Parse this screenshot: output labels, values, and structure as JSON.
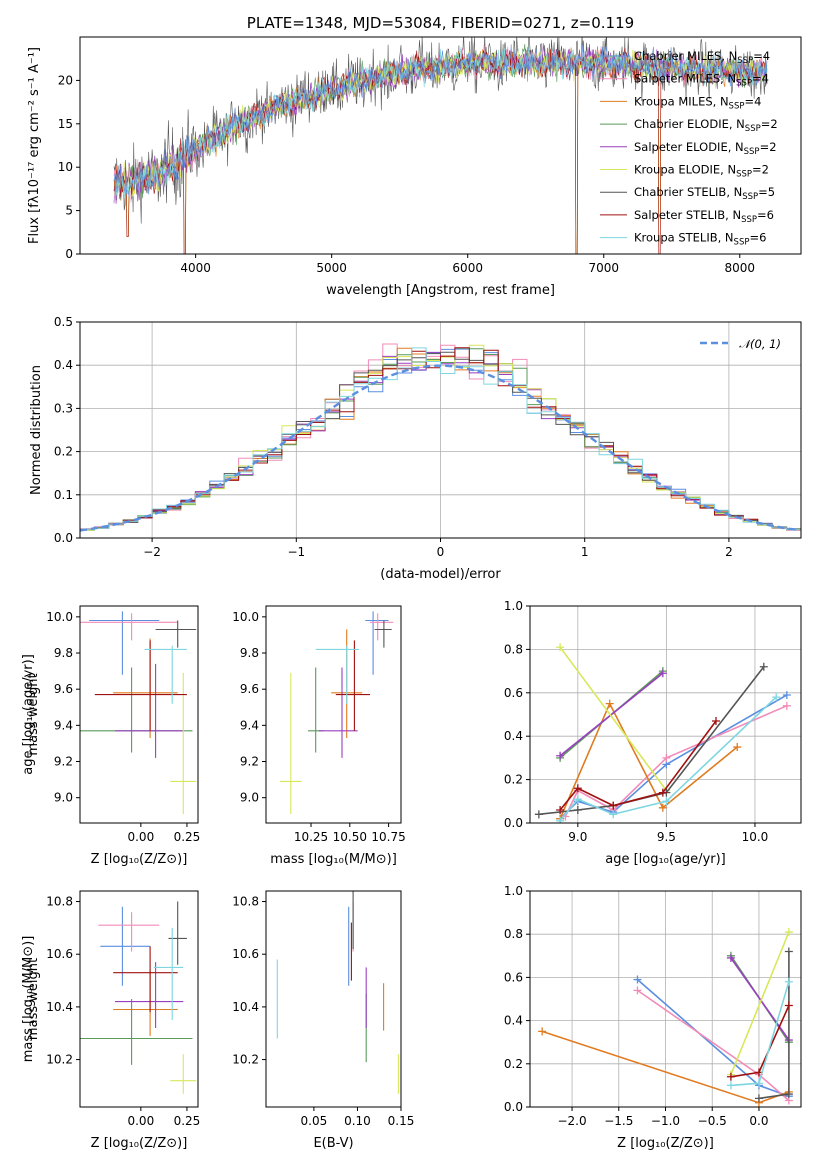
{
  "colors": [
    "#5b8fe0",
    "#f28bb7",
    "#e07b20",
    "#5a9a5a",
    "#9a3fc0",
    "#d8e85a",
    "#555555",
    "#a01010",
    "#7fd6e0"
  ],
  "legend_entries": [
    {
      "base": "Chabrier MILES, N",
      "sub": "SSP",
      "rest": "=4"
    },
    {
      "base": "Salpeter MILES, N",
      "sub": "SSP",
      "rest": "=4"
    },
    {
      "base": "Kroupa MILES, N",
      "sub": "SSP",
      "rest": "=4"
    },
    {
      "base": "Chabrier ELODIE, N",
      "sub": "SSP",
      "rest": "=2"
    },
    {
      "base": "Salpeter ELODIE, N",
      "sub": "SSP",
      "rest": "=2"
    },
    {
      "base": "Kroupa ELODIE, N",
      "sub": "SSP",
      "rest": "=2"
    },
    {
      "base": "Chabrier STELIB, N",
      "sub": "SSP",
      "rest": "=5"
    },
    {
      "base": "Salpeter STELIB, N",
      "sub": "SSP",
      "rest": "=6"
    },
    {
      "base": "Kroupa STELIB, N",
      "sub": "SSP",
      "rest": "=6"
    }
  ],
  "chart_data": [
    {
      "type": "line",
      "title": "PLATE=1348, MJD=53084, FIBERID=0271, z=0.119",
      "xlabel": "wavelength [Angstrom, rest frame]",
      "ylabel": "Flux [fλ10⁻¹⁷ erg cm⁻² s⁻¹ A⁻¹]",
      "xlim": [
        3150,
        8450
      ],
      "ylim": [
        0,
        25
      ],
      "xticks": [
        4000,
        5000,
        6000,
        7000,
        8000
      ],
      "yticks": [
        0,
        5,
        10,
        15,
        20
      ],
      "grid": false,
      "legend": "top-right",
      "x_range": [
        3400,
        8200
      ],
      "continuum_points": [
        [
          3400,
          8
        ],
        [
          3700,
          9
        ],
        [
          3900,
          11
        ],
        [
          4000,
          12
        ],
        [
          4300,
          15
        ],
        [
          4600,
          17
        ],
        [
          5000,
          19
        ],
        [
          5500,
          21
        ],
        [
          6000,
          22
        ],
        [
          6500,
          22
        ],
        [
          7000,
          22
        ],
        [
          7500,
          21.5
        ],
        [
          8000,
          21
        ],
        [
          8200,
          21
        ]
      ],
      "sharp_dips": [
        [
          3500,
          2
        ],
        [
          3920,
          0
        ],
        [
          6800,
          0
        ],
        [
          7410,
          0
        ]
      ]
    },
    {
      "type": "histogram",
      "xlabel": "(data-model)/error",
      "ylabel": "Normed distribution",
      "xlim": [
        -2.5,
        2.5
      ],
      "ylim": [
        0,
        0.5
      ],
      "xticks": [
        -2,
        -1,
        0,
        1,
        2
      ],
      "yticks": [
        0.0,
        0.1,
        0.2,
        0.3,
        0.4,
        0.5
      ],
      "grid": true,
      "legend": "top-right",
      "reference_curve": "𝒩(0, 1)",
      "bin_width": 0.1
    },
    {
      "type": "scatter",
      "xlabel": "Z [log₁₀(Z/Z⊙)]",
      "ylabel": "age  [log₁₀(age/yr)]",
      "xlim": [
        -0.33,
        0.31
      ],
      "ylim": [
        8.86,
        10.06
      ],
      "xticks": [
        0.0,
        0.25
      ],
      "yticks": [
        9.0,
        9.2,
        9.4,
        9.6,
        9.8,
        10.0
      ],
      "points": [
        {
          "x": -0.1,
          "y": 9.98,
          "xerr": [
            0.18,
            0.2
          ],
          "yerr": [
            0.3,
            0.05
          ]
        },
        {
          "x": -0.05,
          "y": 9.97,
          "xerr": [
            0.3,
            0.25
          ],
          "yerr": [
            0.1,
            0.05
          ]
        },
        {
          "x": 0.05,
          "y": 9.58,
          "xerr": [
            0.2,
            0.15
          ],
          "yerr": [
            0.25,
            0.3
          ]
        },
        {
          "x": -0.05,
          "y": 9.37,
          "xerr": [
            0.3,
            0.33
          ],
          "yerr": [
            0.12,
            0.35
          ]
        },
        {
          "x": 0.08,
          "y": 9.37,
          "xerr": [
            0.22,
            0.15
          ],
          "yerr": [
            0.15,
            0.37
          ]
        },
        {
          "x": 0.23,
          "y": 9.09,
          "xerr": [
            0.07,
            0.07
          ],
          "yerr": [
            0.18,
            0.6
          ]
        },
        {
          "x": 0.2,
          "y": 9.93,
          "xerr": [
            0.12,
            0.1
          ],
          "yerr": [
            0.1,
            0.05
          ]
        },
        {
          "x": 0.05,
          "y": 9.57,
          "xerr": [
            0.3,
            0.2
          ],
          "yerr": [
            0.2,
            0.3
          ]
        },
        {
          "x": 0.17,
          "y": 9.82,
          "xerr": [
            0.15,
            0.08
          ],
          "yerr": [
            0.3,
            0.02
          ]
        }
      ]
    },
    {
      "type": "scatter",
      "xlabel": "mass [log₁₀(M/M⊙)]",
      "ylabel": "",
      "xlim": [
        9.96,
        10.83
      ],
      "ylim": [
        8.86,
        10.06
      ],
      "xticks": [
        10.25,
        10.5,
        10.75
      ],
      "yticks": [
        9.0,
        9.2,
        9.4,
        9.6,
        9.8,
        10.0
      ],
      "points": [
        {
          "x": 10.65,
          "y": 9.98,
          "xerr": [
            0.05,
            0.1
          ],
          "yerr": [
            0.3,
            0.05
          ]
        },
        {
          "x": 10.68,
          "y": 9.97,
          "xerr": [
            0.05,
            0.1
          ],
          "yerr": [
            0.1,
            0.05
          ]
        },
        {
          "x": 10.48,
          "y": 9.58,
          "xerr": [
            0.1,
            0.1
          ],
          "yerr": [
            0.25,
            0.35
          ]
        },
        {
          "x": 10.28,
          "y": 9.37,
          "xerr": [
            0.05,
            0.05
          ],
          "yerr": [
            0.12,
            0.35
          ]
        },
        {
          "x": 10.45,
          "y": 9.37,
          "xerr": [
            0.15,
            0.1
          ],
          "yerr": [
            0.15,
            0.35
          ]
        },
        {
          "x": 10.12,
          "y": 9.09,
          "xerr": [
            0.07,
            0.07
          ],
          "yerr": [
            0.18,
            0.6
          ]
        },
        {
          "x": 10.72,
          "y": 9.93,
          "xerr": [
            0.06,
            0.05
          ],
          "yerr": [
            0.1,
            0.05
          ]
        },
        {
          "x": 10.53,
          "y": 9.57,
          "xerr": [
            0.12,
            0.1
          ],
          "yerr": [
            0.2,
            0.3
          ]
        },
        {
          "x": 10.48,
          "y": 9.82,
          "xerr": [
            0.2,
            0.08
          ],
          "yerr": [
            0.3,
            0.02
          ]
        }
      ]
    },
    {
      "type": "line",
      "xlabel": "age  [log₁₀(age/yr)]",
      "ylabel": "mass weight",
      "xlim": [
        8.73,
        10.26
      ],
      "ylim": [
        0,
        1
      ],
      "xticks": [
        9.0,
        9.5,
        10.0
      ],
      "yticks": [
        0.0,
        0.2,
        0.4,
        0.6,
        0.8,
        1.0
      ],
      "grid": true,
      "series": [
        {
          "points": [
            [
              8.9,
              0.02
            ],
            [
              9.0,
              0.1
            ],
            [
              9.2,
              0.05
            ],
            [
              9.5,
              0.27
            ],
            [
              10.18,
              0.59
            ]
          ]
        },
        {
          "points": [
            [
              8.93,
              0.03
            ],
            [
              9.0,
              0.15
            ],
            [
              9.2,
              0.06
            ],
            [
              9.5,
              0.3
            ],
            [
              10.18,
              0.54
            ]
          ]
        },
        {
          "points": [
            [
              8.9,
              0.02
            ],
            [
              9.18,
              0.55
            ],
            [
              9.48,
              0.07
            ],
            [
              9.9,
              0.35
            ]
          ]
        },
        {
          "points": [
            [
              8.9,
              0.3
            ],
            [
              9.48,
              0.7
            ]
          ]
        },
        {
          "points": [
            [
              8.9,
              0.31
            ],
            [
              9.48,
              0.69
            ]
          ]
        },
        {
          "points": [
            [
              8.9,
              0.81
            ],
            [
              9.5,
              0.15
            ]
          ]
        },
        {
          "points": [
            [
              8.78,
              0.04
            ],
            [
              9.0,
              0.06
            ],
            [
              9.2,
              0.08
            ],
            [
              9.5,
              0.14
            ],
            [
              10.05,
              0.72
            ]
          ]
        },
        {
          "points": [
            [
              8.9,
              0.06
            ],
            [
              9.0,
              0.16
            ],
            [
              9.2,
              0.08
            ],
            [
              9.48,
              0.14
            ],
            [
              9.78,
              0.47
            ]
          ]
        },
        {
          "points": [
            [
              8.9,
              0.01
            ],
            [
              9.0,
              0.11
            ],
            [
              9.2,
              0.04
            ],
            [
              9.5,
              0.1
            ],
            [
              10.12,
              0.58
            ]
          ]
        }
      ]
    },
    {
      "type": "scatter",
      "xlabel": "Z [log₁₀(Z/Z⊙)]",
      "ylabel": "mass [log₁₀(M/M⊙)]",
      "xlim": [
        -0.33,
        0.31
      ],
      "ylim": [
        10.02,
        10.84
      ],
      "xticks": [
        0.0,
        0.25
      ],
      "yticks": [
        10.2,
        10.4,
        10.6,
        10.8
      ],
      "points": [
        {
          "x": -0.1,
          "y": 10.63,
          "xerr": [
            0.12,
            0.15
          ],
          "yerr": [
            0.15,
            0.15
          ]
        },
        {
          "x": -0.05,
          "y": 10.71,
          "xerr": [
            0.18,
            0.15
          ],
          "yerr": [
            0.1,
            0.05
          ]
        },
        {
          "x": 0.05,
          "y": 10.39,
          "xerr": [
            0.2,
            0.15
          ],
          "yerr": [
            0.1,
            0.15
          ]
        },
        {
          "x": -0.05,
          "y": 10.28,
          "xerr": [
            0.3,
            0.33
          ],
          "yerr": [
            0.1,
            0.15
          ]
        },
        {
          "x": 0.08,
          "y": 10.42,
          "xerr": [
            0.22,
            0.15
          ],
          "yerr": [
            0.1,
            0.15
          ]
        },
        {
          "x": 0.23,
          "y": 10.12,
          "xerr": [
            0.07,
            0.07
          ],
          "yerr": [
            0.05,
            0.1
          ]
        },
        {
          "x": 0.2,
          "y": 10.66,
          "xerr": [
            0.05,
            0.05
          ],
          "yerr": [
            0.1,
            0.14
          ]
        },
        {
          "x": 0.05,
          "y": 10.53,
          "xerr": [
            0.2,
            0.15
          ],
          "yerr": [
            0.15,
            0.1
          ]
        },
        {
          "x": 0.17,
          "y": 10.55,
          "xerr": [
            0.1,
            0.06
          ],
          "yerr": [
            0.2,
            0.15
          ]
        }
      ]
    },
    {
      "type": "scatter",
      "xlabel": "E(B-V)",
      "ylabel": "",
      "xlim": [
        -0.005,
        0.15
      ],
      "ylim": [
        10.02,
        10.84
      ],
      "xticks": [
        0.05,
        0.1,
        0.15
      ],
      "yticks": [
        10.2,
        10.4,
        10.6,
        10.8
      ],
      "points": [
        {
          "x": 0.09,
          "y": 10.63,
          "yerr": [
            0.15,
            0.15
          ]
        },
        {
          "x": 0.095,
          "y": 10.71,
          "yerr": [
            0.1,
            0.09
          ]
        },
        {
          "x": 0.13,
          "y": 10.39,
          "yerr": [
            0.08,
            0.1
          ]
        },
        {
          "x": 0.11,
          "y": 10.35,
          "yerr": [
            0.16,
            0.1
          ]
        },
        {
          "x": 0.11,
          "y": 10.42,
          "yerr": [
            0.1,
            0.13
          ]
        },
        {
          "x": 0.147,
          "y": 10.12,
          "yerr": [
            0.05,
            0.1
          ]
        },
        {
          "x": 0.095,
          "y": 10.72,
          "yerr": [
            0.1,
            0.12
          ]
        },
        {
          "x": 0.093,
          "y": 10.6,
          "yerr": [
            0.1,
            0.12
          ]
        },
        {
          "x": 0.008,
          "y": 10.43,
          "yerr": [
            0.15,
            0.15
          ]
        }
      ]
    },
    {
      "type": "line",
      "xlabel": "Z [log₁₀(Z/Z⊙)]",
      "ylabel": "mass weight",
      "xlim": [
        -2.45,
        0.45
      ],
      "ylim": [
        0,
        1
      ],
      "xticks": [
        -2.0,
        -1.5,
        -1.0,
        -0.5,
        0.0
      ],
      "yticks": [
        0.0,
        0.2,
        0.4,
        0.6,
        0.8,
        1.0
      ],
      "grid": true,
      "series": [
        {
          "points": [
            [
              -1.3,
              0.59
            ],
            [
              0.0,
              0.1
            ],
            [
              0.32,
              0.05
            ]
          ]
        },
        {
          "points": [
            [
              -1.3,
              0.54
            ],
            [
              0.0,
              0.15
            ],
            [
              0.32,
              0.03
            ]
          ]
        },
        {
          "points": [
            [
              -2.32,
              0.35
            ],
            [
              0.0,
              0.02
            ],
            [
              0.32,
              0.07
            ]
          ]
        },
        {
          "points": [
            [
              -0.3,
              0.7
            ],
            [
              0.32,
              0.3
            ]
          ]
        },
        {
          "points": [
            [
              -0.3,
              0.69
            ],
            [
              0.32,
              0.31
            ]
          ]
        },
        {
          "points": [
            [
              -0.3,
              0.15
            ],
            [
              0.32,
              0.81
            ]
          ]
        },
        {
          "points": [
            [
              0.0,
              0.04
            ],
            [
              0.32,
              0.06
            ],
            [
              0.32,
              0.72
            ]
          ]
        },
        {
          "points": [
            [
              -0.3,
              0.14
            ],
            [
              0.0,
              0.16
            ],
            [
              0.32,
              0.47
            ]
          ]
        },
        {
          "points": [
            [
              -0.3,
              0.1
            ],
            [
              0.0,
              0.11
            ],
            [
              0.32,
              0.58
            ]
          ]
        }
      ]
    }
  ]
}
